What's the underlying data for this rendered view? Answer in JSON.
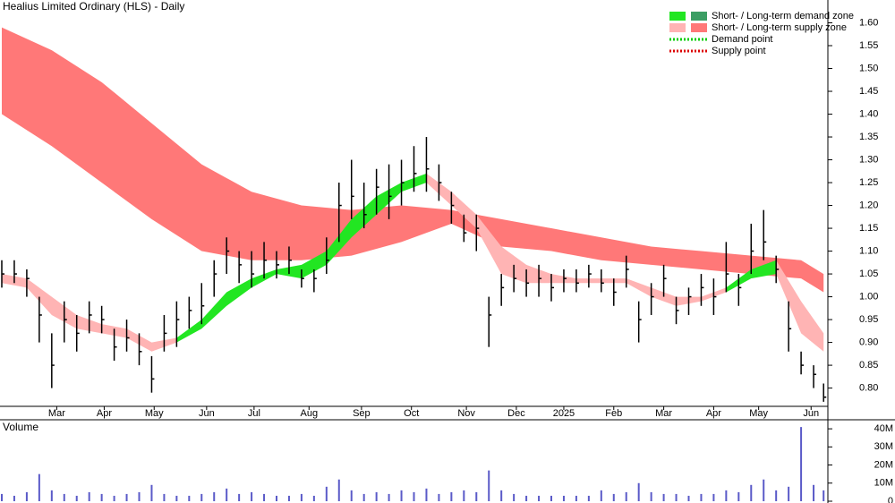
{
  "chart_data": [
    {
      "type": "candlestick",
      "title": "Healius Limited Ordinary (HLS) - Daily",
      "x": [
        0,
        5,
        10,
        15,
        20,
        25,
        30,
        35,
        40,
        45,
        50,
        55,
        60,
        65,
        70,
        75,
        80,
        85,
        90,
        95,
        100,
        105,
        110,
        115,
        120,
        125,
        130,
        135,
        140,
        145,
        150,
        155,
        160,
        165,
        170,
        175,
        180,
        185,
        190,
        195,
        200,
        205,
        210,
        215,
        220,
        225,
        230,
        235,
        240,
        245,
        250,
        255,
        260,
        265,
        270,
        275,
        280,
        285,
        290,
        295,
        300,
        305,
        310,
        315,
        320,
        325,
        329
      ],
      "high": [
        1.08,
        1.08,
        1.06,
        1.0,
        0.92,
        0.99,
        0.96,
        0.99,
        0.98,
        0.93,
        0.95,
        0.92,
        0.87,
        0.96,
        0.99,
        1.0,
        1.03,
        1.08,
        1.13,
        1.1,
        1.1,
        1.12,
        1.1,
        1.11,
        1.06,
        1.06,
        1.13,
        1.25,
        1.3,
        1.25,
        1.28,
        1.29,
        1.3,
        1.33,
        1.35,
        1.29,
        1.23,
        1.18,
        1.18,
        1.0,
        1.05,
        1.07,
        1.06,
        1.07,
        1.05,
        1.06,
        1.06,
        1.07,
        1.06,
        1.04,
        1.09,
        0.99,
        1.03,
        1.07,
        1.0,
        1.02,
        1.05,
        1.04,
        1.12,
        1.05,
        1.16,
        1.19,
        1.09,
        0.99,
        0.88,
        0.85,
        0.81
      ],
      "low": [
        1.02,
        1.03,
        1.0,
        0.9,
        0.8,
        0.9,
        0.88,
        0.92,
        0.92,
        0.86,
        0.88,
        0.85,
        0.79,
        0.88,
        0.89,
        0.93,
        0.94,
        1.0,
        1.05,
        1.03,
        1.02,
        1.04,
        1.04,
        1.05,
        1.02,
        1.01,
        1.05,
        1.12,
        1.17,
        1.15,
        1.18,
        1.17,
        1.2,
        1.23,
        1.23,
        1.21,
        1.16,
        1.12,
        1.1,
        0.89,
        0.98,
        1.01,
        1.0,
        1.0,
        0.99,
        1.01,
        1.01,
        1.02,
        1.01,
        0.98,
        1.02,
        0.9,
        0.96,
        1.0,
        0.94,
        0.96,
        0.98,
        0.96,
        1.01,
        0.98,
        1.05,
        1.08,
        1.03,
        0.88,
        0.83,
        0.8,
        0.77
      ],
      "close": [
        1.05,
        1.05,
        1.04,
        0.96,
        0.85,
        0.95,
        0.92,
        0.96,
        0.95,
        0.89,
        0.91,
        0.88,
        0.82,
        0.92,
        0.95,
        0.97,
        0.98,
        1.05,
        1.1,
        1.07,
        1.05,
        1.08,
        1.07,
        1.08,
        1.04,
        1.04,
        1.08,
        1.2,
        1.22,
        1.18,
        1.24,
        1.22,
        1.25,
        1.27,
        1.28,
        1.25,
        1.2,
        1.14,
        1.15,
        0.96,
        1.02,
        1.04,
        1.03,
        1.04,
        1.02,
        1.04,
        1.03,
        1.05,
        1.03,
        1.01,
        1.06,
        0.95,
        1.0,
        1.04,
        0.97,
        1.0,
        1.02,
        1.0,
        1.05,
        1.02,
        1.1,
        1.12,
        1.06,
        0.93,
        0.85,
        0.83,
        0.78
      ],
      "zone_x": [
        0,
        20,
        40,
        60,
        80,
        100,
        120,
        140,
        160,
        180,
        200,
        220,
        240,
        260,
        280,
        300,
        320,
        329
      ],
      "long_term_supply": {
        "color": "#ff7878",
        "upper": [
          1.59,
          1.54,
          1.47,
          1.38,
          1.29,
          1.23,
          1.2,
          1.19,
          1.2,
          1.19,
          1.17,
          1.15,
          1.13,
          1.11,
          1.1,
          1.09,
          1.08,
          1.05
        ],
        "lower": [
          1.4,
          1.33,
          1.25,
          1.17,
          1.1,
          1.08,
          1.08,
          1.09,
          1.12,
          1.16,
          1.11,
          1.1,
          1.08,
          1.07,
          1.06,
          1.05,
          1.04,
          1.01
        ]
      },
      "short_x": [
        0,
        10,
        20,
        30,
        40,
        50,
        60,
        70,
        80,
        90,
        100,
        110,
        120,
        130,
        140,
        150,
        160,
        170,
        180,
        190,
        200,
        210,
        220,
        230,
        240,
        250,
        260,
        270,
        280,
        290,
        300,
        310,
        320,
        329
      ],
      "short_term_supply": {
        "color": "#ffb4b4",
        "upper": [
          1.05,
          1.04,
          1.0,
          0.96,
          0.94,
          0.93,
          0.9,
          0.91,
          null,
          null,
          null,
          null,
          null,
          null,
          null,
          null,
          null,
          1.27,
          1.23,
          1.18,
          1.11,
          1.07,
          1.05,
          1.04,
          1.04,
          1.04,
          1.02,
          1.0,
          1.0,
          1.02,
          null,
          1.08,
          0.99,
          0.92
        ],
        "lower": [
          1.03,
          1.02,
          0.96,
          0.93,
          0.92,
          0.91,
          0.88,
          0.9,
          null,
          null,
          null,
          null,
          null,
          null,
          null,
          null,
          null,
          1.25,
          1.2,
          1.15,
          1.05,
          1.03,
          1.03,
          1.03,
          1.03,
          1.03,
          1.0,
          0.98,
          0.99,
          1.01,
          null,
          1.05,
          0.92,
          0.88
        ]
      },
      "short_term_demand": {
        "color": "#22e622",
        "upper": [
          null,
          null,
          null,
          null,
          null,
          null,
          null,
          0.91,
          0.95,
          1.01,
          1.04,
          1.06,
          1.07,
          1.1,
          1.17,
          1.22,
          1.25,
          1.27,
          null,
          null,
          null,
          null,
          null,
          null,
          null,
          null,
          null,
          null,
          null,
          1.02,
          1.06,
          1.08,
          null,
          null
        ],
        "lower": [
          null,
          null,
          null,
          null,
          null,
          null,
          null,
          0.9,
          0.93,
          0.98,
          1.02,
          1.05,
          1.04,
          1.07,
          1.13,
          1.18,
          1.23,
          1.25,
          null,
          null,
          null,
          null,
          null,
          null,
          null,
          null,
          null,
          null,
          null,
          1.01,
          1.04,
          1.05,
          null,
          null
        ]
      },
      "xlim": [
        0,
        330
      ],
      "xticks": [
        {
          "value": 22,
          "label": "Mar"
        },
        {
          "value": 41,
          "label": "Apr"
        },
        {
          "value": 61,
          "label": "May"
        },
        {
          "value": 82,
          "label": "Jun"
        },
        {
          "value": 101,
          "label": "Jul"
        },
        {
          "value": 123,
          "label": "Aug"
        },
        {
          "value": 144,
          "label": "Sep"
        },
        {
          "value": 164,
          "label": "Oct"
        },
        {
          "value": 186,
          "label": "Nov"
        },
        {
          "value": 206,
          "label": "Dec"
        },
        {
          "value": 225,
          "label": "2025"
        },
        {
          "value": 245,
          "label": "Feb"
        },
        {
          "value": 265,
          "label": "Mar"
        },
        {
          "value": 285,
          "label": "Apr"
        },
        {
          "value": 303,
          "label": "May"
        },
        {
          "value": 324,
          "label": "Jun"
        }
      ],
      "ylim": [
        0.76,
        1.65
      ],
      "yticks": [
        {
          "value": 0.8,
          "label": "0.80"
        },
        0.85,
        {
          "value": 0.9,
          "label": "0.90"
        },
        0.95,
        {
          "value": 1.0,
          "label": "1.00"
        },
        1.05,
        {
          "value": 1.1,
          "label": "1.10"
        },
        1.15,
        {
          "value": 1.2,
          "label": "1.20"
        },
        1.25,
        {
          "value": 1.3,
          "label": "1.30"
        },
        1.35,
        {
          "value": 1.4,
          "label": "1.40"
        },
        1.45,
        {
          "value": 1.5,
          "label": "1.50"
        },
        1.55,
        {
          "value": 1.6,
          "label": "1.60"
        }
      ],
      "legend": [
        {
          "label": "Short- / Long-term demand zone",
          "colors": [
            "#22e622",
            "#3c9e64"
          ]
        },
        {
          "label": "Short- / Long-term supply zone",
          "colors": [
            "#ffb4b4",
            "#ff7878"
          ]
        },
        {
          "label": "Demand point",
          "colors": [
            "#00cc00"
          ]
        },
        {
          "label": "Supply point",
          "colors": [
            "#dd0000"
          ]
        }
      ]
    },
    {
      "type": "bar",
      "title": "Volume",
      "color": "#5a5ac8",
      "x": [
        0,
        5,
        10,
        15,
        20,
        25,
        30,
        35,
        40,
        45,
        50,
        55,
        60,
        65,
        70,
        75,
        80,
        85,
        90,
        95,
        100,
        105,
        110,
        115,
        120,
        125,
        130,
        135,
        140,
        145,
        150,
        155,
        160,
        165,
        170,
        175,
        180,
        185,
        190,
        195,
        200,
        205,
        210,
        215,
        220,
        225,
        230,
        235,
        240,
        245,
        250,
        255,
        260,
        265,
        270,
        275,
        280,
        285,
        290,
        295,
        300,
        305,
        310,
        315,
        320,
        325,
        329
      ],
      "values": [
        4000000,
        3000000,
        5000000,
        15000000,
        6000000,
        4000000,
        3000000,
        5000000,
        4000000,
        3000000,
        4000000,
        5000000,
        9000000,
        4000000,
        3000000,
        3000000,
        4000000,
        5000000,
        7000000,
        4000000,
        5000000,
        4000000,
        3000000,
        3000000,
        4000000,
        3000000,
        8000000,
        12000000,
        6000000,
        4000000,
        5000000,
        4000000,
        6000000,
        5000000,
        7000000,
        4000000,
        5000000,
        6000000,
        5000000,
        17000000,
        6000000,
        4000000,
        3000000,
        3000000,
        3000000,
        3000000,
        3000000,
        3000000,
        6000000,
        4000000,
        5000000,
        10000000,
        5000000,
        4000000,
        4000000,
        3000000,
        4000000,
        4000000,
        6000000,
        5000000,
        9000000,
        12000000,
        6000000,
        8000000,
        41000000,
        9000000,
        6000000
      ],
      "xlim": [
        0,
        330
      ],
      "ylim": [
        0,
        45000000
      ],
      "yticks": [
        0,
        {
          "value": 10000000,
          "label": "10M"
        },
        {
          "value": 20000000,
          "label": "20M"
        },
        {
          "value": 30000000,
          "label": "30M"
        },
        {
          "value": 40000000,
          "label": "40M"
        }
      ]
    }
  ]
}
